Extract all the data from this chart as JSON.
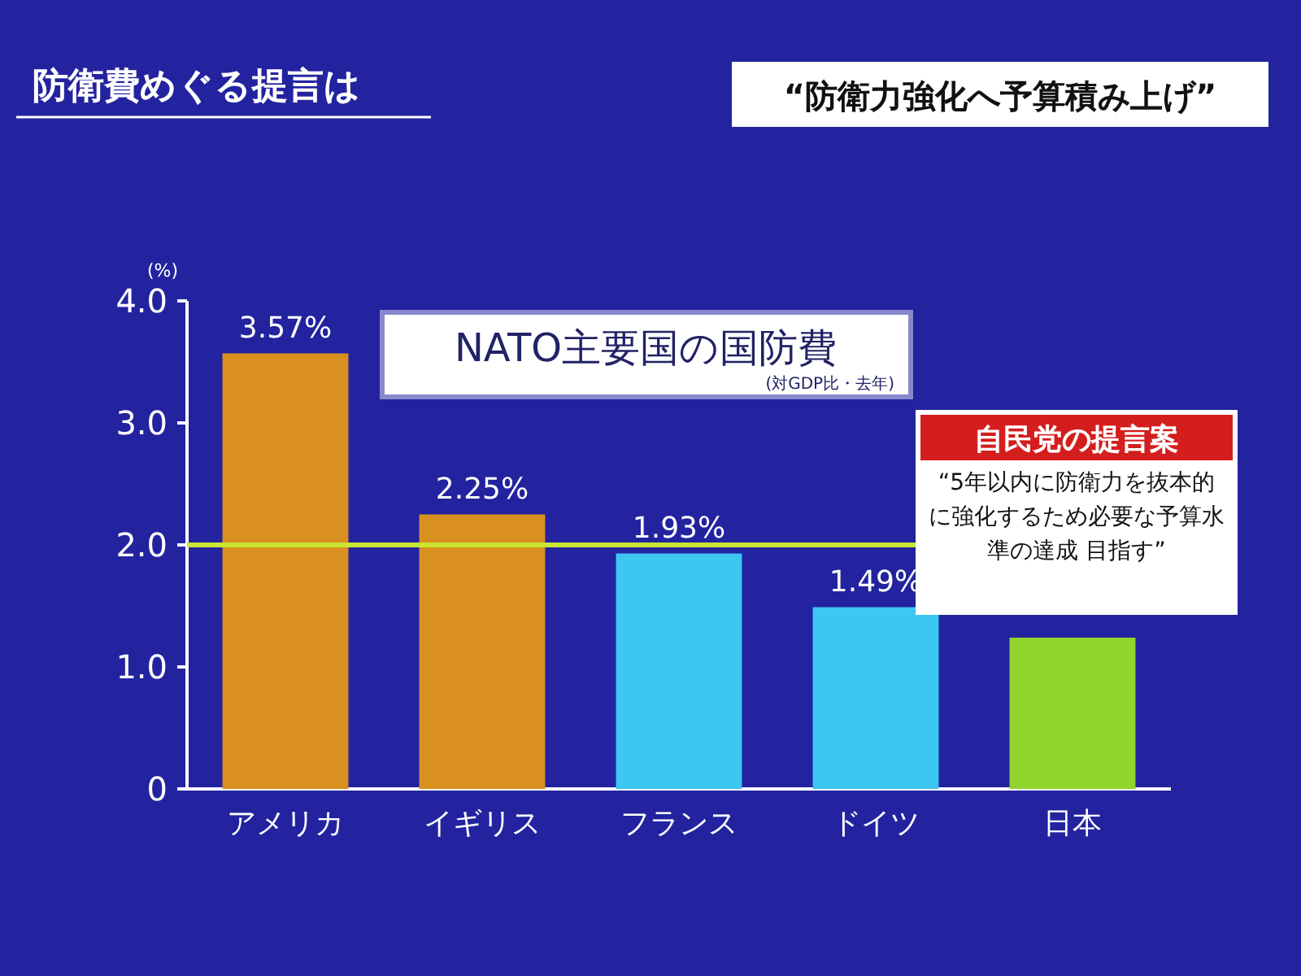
{
  "chart_data": {
    "type": "bar",
    "title": "防衛費めぐる提言は",
    "subtitle": "“防衛力強化へ予算積み上げ”",
    "ylabel": "(%)",
    "categories": [
      "アメリカ",
      "イギリス",
      "フランス",
      "ドイツ",
      "日本"
    ],
    "values": [
      3.57,
      2.25,
      1.93,
      1.49,
      1.24
    ],
    "colors": [
      "#d9901f",
      "#d9901f",
      "#3cc6f2",
      "#3cc6f2",
      "#8fd52b"
    ],
    "value_labels": [
      "3.57%",
      "2.25%",
      "1.93%",
      "1.49%",
      null
    ],
    "ylim": [
      0,
      4
    ],
    "yticks": [
      {
        "value": 0,
        "label": "0"
      },
      {
        "value": 1,
        "label": "1.0"
      },
      {
        "value": 2,
        "label": "2.0"
      },
      {
        "value": 3,
        "label": "3.0"
      },
      {
        "value": 4,
        "label": "4.0"
      }
    ],
    "ref_lines": [
      {
        "axis": "y",
        "value": 2,
        "label": null,
        "color": "#c8e632"
      }
    ],
    "annotations": [
      "NATO主要国の国防費",
      "(対GDP比・去年)",
      "自民党の提言案",
      "“5年以内に防衛力を抜本的に強化するため必要な予算水準の達成 目指す”"
    ],
    "grid": false
  }
}
